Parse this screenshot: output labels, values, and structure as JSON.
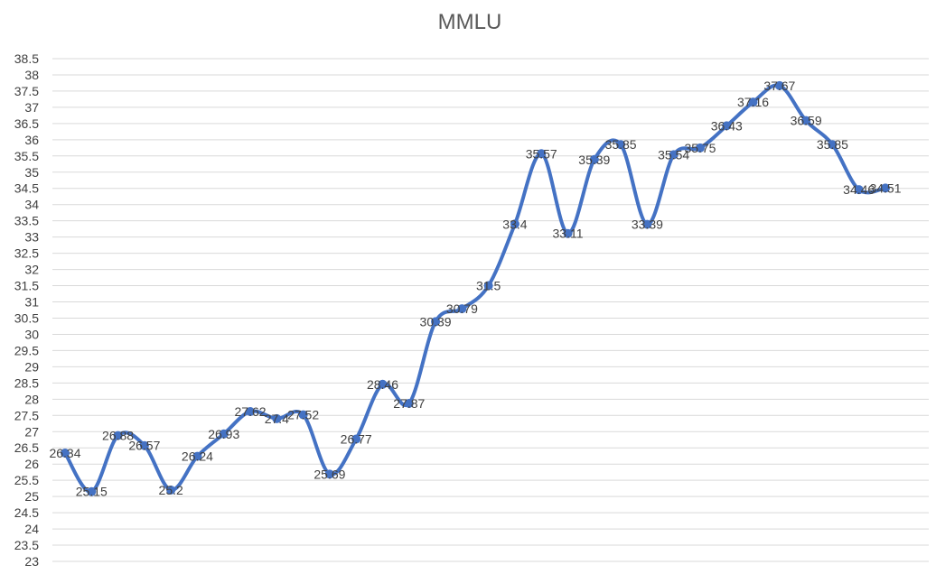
{
  "chart_data": {
    "type": "line",
    "title": "MMLU",
    "xlabel": "",
    "ylabel": "",
    "ylim": [
      23,
      38.5
    ],
    "y_tick_step": 0.5,
    "y_tick_labels": [
      "23",
      "23.5",
      "24",
      "24.5",
      "25",
      "25.5",
      "26",
      "26.5",
      "27",
      "27.5",
      "28",
      "28.5",
      "29",
      "29.5",
      "30",
      "30.5",
      "31",
      "31.5",
      "32",
      "32.5",
      "33",
      "33.5",
      "34",
      "34.5",
      "35",
      "35.5",
      "36",
      "36.5",
      "37",
      "37.5",
      "38",
      "38.5"
    ],
    "grid": true,
    "legend": "none",
    "smooth": true,
    "series": [
      {
        "values": [
          26.34,
          25.15,
          26.88,
          26.57,
          25.2,
          26.24,
          26.93,
          27.62,
          27.4,
          27.52,
          25.69,
          26.77,
          28.46,
          27.87,
          30.39,
          30.79,
          31.5,
          33.4,
          35.57,
          33.11,
          35.39,
          35.85,
          33.39,
          35.54,
          35.75,
          36.43,
          37.16,
          37.67,
          36.59,
          35.85,
          34.46,
          34.51
        ],
        "labels": [
          "26.34",
          "25.15",
          "26.88",
          "26.57",
          "25.2",
          "26.24",
          "26.93",
          "27.62",
          "27.4",
          "27.52",
          "25.69",
          "26.77",
          "28.46",
          "27.87",
          "30.39",
          "30.79",
          "31.5",
          "33.4",
          "35.57",
          "33.11",
          "35.39",
          "35.85",
          "33.39",
          "35.54",
          "35.75",
          "36.43",
          "37.16",
          "37.67",
          "36.59",
          "35.85",
          "34.46",
          "34.51"
        ]
      }
    ],
    "colors": {
      "line": "#4472C4",
      "marker": "#4472C4",
      "grid": "#d9d9d9",
      "text": "#404040",
      "title": "#595959"
    }
  }
}
